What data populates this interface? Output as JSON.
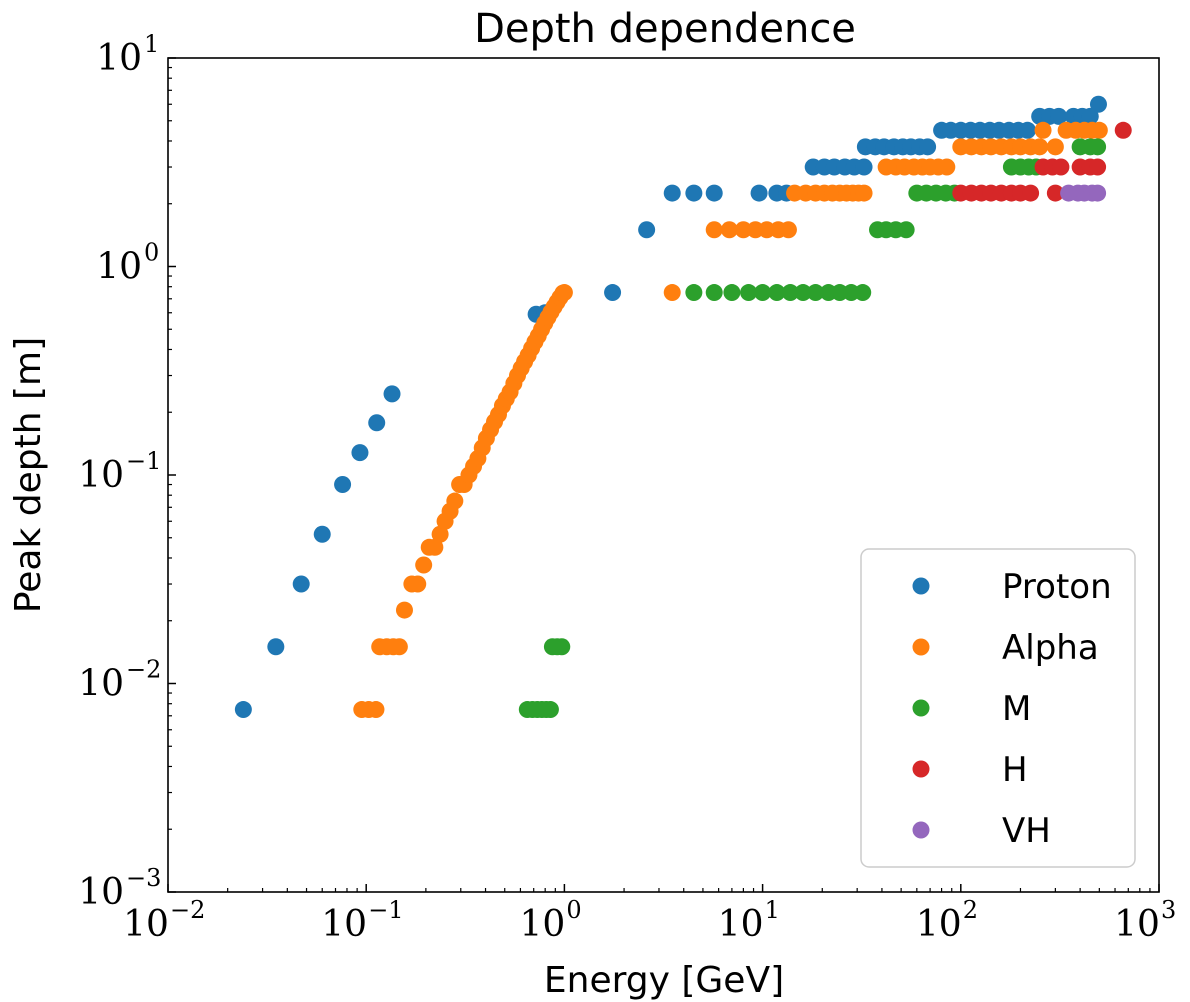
{
  "chart_data": {
    "type": "scatter",
    "title": "Depth dependence",
    "xlabel": "Energy [GeV]",
    "ylabel": "Peak depth [m]",
    "x_scale": "log",
    "y_scale": "log",
    "xlim": [
      0.01,
      1000
    ],
    "ylim": [
      0.001,
      10
    ],
    "x_ticks": [
      {
        "base": "10",
        "exp": "−2",
        "value": 0.01
      },
      {
        "base": "10",
        "exp": "−1",
        "value": 0.1
      },
      {
        "base": "10",
        "exp": "0",
        "value": 1
      },
      {
        "base": "10",
        "exp": "1",
        "value": 10
      },
      {
        "base": "10",
        "exp": "2",
        "value": 100
      },
      {
        "base": "10",
        "exp": "3",
        "value": 1000
      }
    ],
    "y_ticks": [
      {
        "base": "10",
        "exp": "−3",
        "value": 0.001
      },
      {
        "base": "10",
        "exp": "−2",
        "value": 0.01
      },
      {
        "base": "10",
        "exp": "−1",
        "value": 0.1
      },
      {
        "base": "10",
        "exp": "0",
        "value": 1
      },
      {
        "base": "10",
        "exp": "1",
        "value": 10
      }
    ],
    "grid": false,
    "legend_position": "lower-right",
    "series": [
      {
        "name": "Proton",
        "color": "#1f77b4",
        "points": [
          [
            0.024,
            0.0075
          ],
          [
            0.035,
            0.015
          ],
          [
            0.047,
            0.03
          ],
          [
            0.06,
            0.052
          ],
          [
            0.076,
            0.09
          ],
          [
            0.093,
            0.128
          ],
          [
            0.113,
            0.178
          ],
          [
            0.135,
            0.245
          ],
          [
            0.72,
            0.59
          ],
          [
            0.8,
            0.6
          ],
          [
            1.75,
            0.75
          ],
          [
            2.6,
            1.5
          ],
          [
            3.5,
            2.25
          ],
          [
            4.5,
            2.25
          ],
          [
            5.7,
            2.25
          ],
          [
            9.6,
            2.25
          ],
          [
            11.8,
            2.25
          ],
          [
            13.2,
            2.25
          ],
          [
            18,
            3.0
          ],
          [
            20.5,
            3.0
          ],
          [
            23,
            3.0
          ],
          [
            26,
            3.0
          ],
          [
            29,
            3.0
          ],
          [
            32.5,
            3.0
          ],
          [
            33,
            3.75
          ],
          [
            37,
            3.75
          ],
          [
            41,
            3.75
          ],
          [
            46,
            3.75
          ],
          [
            51,
            3.75
          ],
          [
            56,
            3.75
          ],
          [
            62,
            3.75
          ],
          [
            68,
            3.75
          ],
          [
            80,
            4.5
          ],
          [
            89,
            4.5
          ],
          [
            100,
            4.5
          ],
          [
            112,
            4.5
          ],
          [
            125,
            4.5
          ],
          [
            140,
            4.5
          ],
          [
            156,
            4.5
          ],
          [
            175,
            4.5
          ],
          [
            195,
            4.5
          ],
          [
            217,
            4.5
          ],
          [
            250,
            5.25
          ],
          [
            280,
            5.25
          ],
          [
            312,
            5.25
          ],
          [
            370,
            5.25
          ],
          [
            410,
            5.25
          ],
          [
            450,
            5.25
          ],
          [
            495,
            6.0
          ]
        ]
      },
      {
        "name": "Alpha",
        "color": "#ff7f0e",
        "points": [
          [
            0.095,
            0.0075
          ],
          [
            0.103,
            0.0075
          ],
          [
            0.112,
            0.0075
          ],
          [
            0.117,
            0.015
          ],
          [
            0.127,
            0.015
          ],
          [
            0.137,
            0.015
          ],
          [
            0.147,
            0.015
          ],
          [
            0.156,
            0.0225
          ],
          [
            0.17,
            0.03
          ],
          [
            0.182,
            0.03
          ],
          [
            0.195,
            0.037
          ],
          [
            0.208,
            0.045
          ],
          [
            0.222,
            0.045
          ],
          [
            0.236,
            0.052
          ],
          [
            0.25,
            0.06
          ],
          [
            0.265,
            0.067
          ],
          [
            0.28,
            0.075
          ],
          [
            0.296,
            0.09
          ],
          [
            0.312,
            0.09
          ],
          [
            0.33,
            0.1
          ],
          [
            0.348,
            0.11
          ],
          [
            0.366,
            0.12
          ],
          [
            0.385,
            0.135
          ],
          [
            0.404,
            0.15
          ],
          [
            0.424,
            0.165
          ],
          [
            0.444,
            0.18
          ],
          [
            0.465,
            0.195
          ],
          [
            0.487,
            0.215
          ],
          [
            0.509,
            0.232
          ],
          [
            0.532,
            0.25
          ],
          [
            0.556,
            0.275
          ],
          [
            0.58,
            0.3
          ],
          [
            0.605,
            0.325
          ],
          [
            0.63,
            0.35
          ],
          [
            0.656,
            0.375
          ],
          [
            0.683,
            0.405
          ],
          [
            0.71,
            0.435
          ],
          [
            0.738,
            0.465
          ],
          [
            0.767,
            0.5
          ],
          [
            0.796,
            0.535
          ],
          [
            0.826,
            0.57
          ],
          [
            0.856,
            0.605
          ],
          [
            0.887,
            0.64
          ],
          [
            0.918,
            0.675
          ],
          [
            0.95,
            0.71
          ],
          [
            0.983,
            0.745
          ],
          [
            1.0,
            0.75
          ],
          [
            3.5,
            0.75
          ],
          [
            5.7,
            1.5
          ],
          [
            6.8,
            1.5
          ],
          [
            8.0,
            1.5
          ],
          [
            9.2,
            1.5
          ],
          [
            10.5,
            1.5
          ],
          [
            12.0,
            1.5
          ],
          [
            13.5,
            1.5
          ],
          [
            14.5,
            2.25
          ],
          [
            16.5,
            2.25
          ],
          [
            18.5,
            2.25
          ],
          [
            20.5,
            2.25
          ],
          [
            22.5,
            2.25
          ],
          [
            24.5,
            2.25
          ],
          [
            26.5,
            2.25
          ],
          [
            28.5,
            2.25
          ],
          [
            30.5,
            2.25
          ],
          [
            32.5,
            2.25
          ],
          [
            42,
            3.0
          ],
          [
            47,
            3.0
          ],
          [
            52,
            3.0
          ],
          [
            58,
            3.0
          ],
          [
            64,
            3.0
          ],
          [
            70,
            3.0
          ],
          [
            77,
            3.0
          ],
          [
            85,
            3.0
          ],
          [
            100,
            3.75
          ],
          [
            113,
            3.75
          ],
          [
            127,
            3.75
          ],
          [
            142,
            3.75
          ],
          [
            160,
            3.75
          ],
          [
            180,
            3.75
          ],
          [
            200,
            3.75
          ],
          [
            225,
            3.75
          ],
          [
            250,
            3.75
          ],
          [
            300,
            3.75
          ],
          [
            260,
            4.5
          ],
          [
            340,
            4.5
          ],
          [
            380,
            4.5
          ],
          [
            420,
            4.5
          ],
          [
            460,
            4.5
          ],
          [
            500,
            4.5
          ]
        ]
      },
      {
        "name": "M",
        "color": "#2ca02c",
        "points": [
          [
            0.65,
            0.0075
          ],
          [
            0.69,
            0.0075
          ],
          [
            0.73,
            0.0075
          ],
          [
            0.77,
            0.0075
          ],
          [
            0.81,
            0.0075
          ],
          [
            0.85,
            0.0075
          ],
          [
            0.87,
            0.015
          ],
          [
            0.92,
            0.015
          ],
          [
            0.97,
            0.015
          ],
          [
            4.5,
            0.75
          ],
          [
            5.7,
            0.75
          ],
          [
            7.0,
            0.75
          ],
          [
            8.5,
            0.75
          ],
          [
            10.0,
            0.75
          ],
          [
            11.8,
            0.75
          ],
          [
            13.8,
            0.75
          ],
          [
            16.0,
            0.75
          ],
          [
            18.5,
            0.75
          ],
          [
            21.5,
            0.75
          ],
          [
            24.5,
            0.75
          ],
          [
            28.0,
            0.75
          ],
          [
            32.0,
            0.75
          ],
          [
            38,
            1.5
          ],
          [
            42,
            1.5
          ],
          [
            47,
            1.5
          ],
          [
            53,
            1.5
          ],
          [
            60,
            2.25
          ],
          [
            67,
            2.25
          ],
          [
            75,
            2.25
          ],
          [
            84,
            2.25
          ],
          [
            93,
            2.25
          ],
          [
            180,
            3.0
          ],
          [
            200,
            3.0
          ],
          [
            220,
            3.0
          ],
          [
            240,
            3.0
          ],
          [
            400,
            3.75
          ],
          [
            450,
            3.75
          ],
          [
            490,
            3.75
          ]
        ]
      },
      {
        "name": "H",
        "color": "#d62728",
        "points": [
          [
            100,
            2.25
          ],
          [
            113,
            2.25
          ],
          [
            127,
            2.25
          ],
          [
            142,
            2.25
          ],
          [
            160,
            2.25
          ],
          [
            180,
            2.25
          ],
          [
            200,
            2.25
          ],
          [
            225,
            2.25
          ],
          [
            300,
            2.25
          ],
          [
            260,
            3.0
          ],
          [
            290,
            3.0
          ],
          [
            320,
            3.0
          ],
          [
            400,
            3.0
          ],
          [
            450,
            3.0
          ],
          [
            490,
            3.0
          ],
          [
            660,
            4.5
          ]
        ]
      },
      {
        "name": "VH",
        "color": "#9467bd",
        "points": [
          [
            350,
            2.25
          ],
          [
            390,
            2.25
          ],
          [
            420,
            2.25
          ],
          [
            460,
            2.25
          ],
          [
            490,
            2.25
          ]
        ]
      }
    ]
  }
}
